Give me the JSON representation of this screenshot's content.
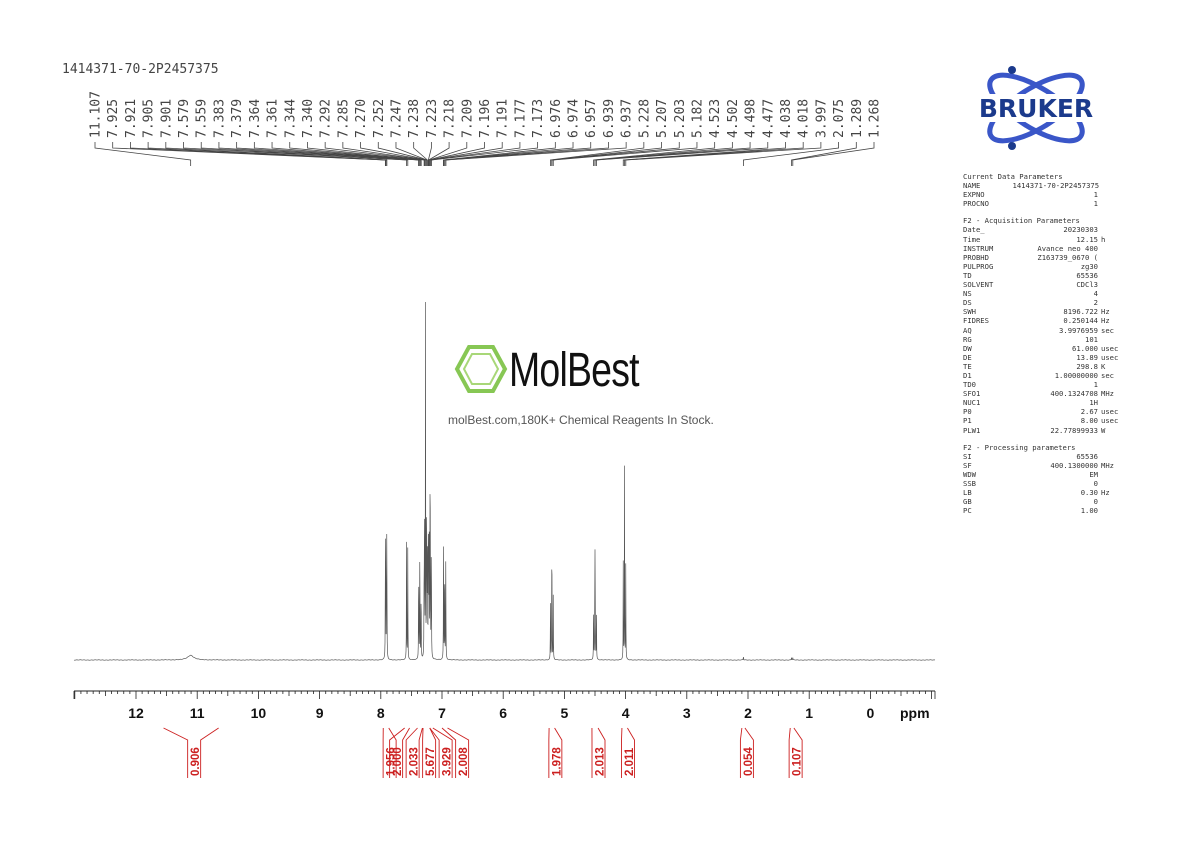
{
  "sample_name": "1414371-70-2P2457375",
  "brand": {
    "name": "BRUKER",
    "color": "#1b3a8c",
    "accent": "#3a56c8"
  },
  "watermark": {
    "name": "MolBest",
    "tagline": "molBest.com,180K+ Chemical Reagents In Stock.",
    "logo_icon": "benzene-ring-icon",
    "color": "#7bc142"
  },
  "parameters": {
    "current": {
      "heading": "Current Data Parameters",
      "rows": [
        {
          "key": "NAME",
          "value": "1414371-70-2P2457375",
          "unit": ""
        },
        {
          "key": "EXPNO",
          "value": "1",
          "unit": ""
        },
        {
          "key": "PROCNO",
          "value": "1",
          "unit": ""
        }
      ]
    },
    "acquisition": {
      "heading": "F2 - Acquisition Parameters",
      "rows": [
        {
          "key": "Date_",
          "value": "20230303",
          "unit": ""
        },
        {
          "key": "Time",
          "value": "12.15",
          "unit": "h"
        },
        {
          "key": "INSTRUM",
          "value": "Avance neo 400",
          "unit": ""
        },
        {
          "key": "PROBHD",
          "value": "Z163739_0670 (",
          "unit": ""
        },
        {
          "key": "PULPROG",
          "value": "zg30",
          "unit": ""
        },
        {
          "key": "TD",
          "value": "65536",
          "unit": ""
        },
        {
          "key": "SOLVENT",
          "value": "CDCl3",
          "unit": ""
        },
        {
          "key": "NS",
          "value": "4",
          "unit": ""
        },
        {
          "key": "DS",
          "value": "2",
          "unit": ""
        },
        {
          "key": "SWH",
          "value": "8196.722",
          "unit": "Hz"
        },
        {
          "key": "FIDRES",
          "value": "0.250144",
          "unit": "Hz"
        },
        {
          "key": "AQ",
          "value": "3.9976959",
          "unit": "sec"
        },
        {
          "key": "RG",
          "value": "101",
          "unit": ""
        },
        {
          "key": "DW",
          "value": "61.000",
          "unit": "usec"
        },
        {
          "key": "DE",
          "value": "13.89",
          "unit": "usec"
        },
        {
          "key": "TE",
          "value": "298.8",
          "unit": "K"
        },
        {
          "key": "D1",
          "value": "1.00000000",
          "unit": "sec"
        },
        {
          "key": "TD0",
          "value": "1",
          "unit": ""
        },
        {
          "key": "SFO1",
          "value": "400.1324708",
          "unit": "MHz"
        },
        {
          "key": "NUC1",
          "value": "1H",
          "unit": ""
        },
        {
          "key": "P0",
          "value": "2.67",
          "unit": "usec"
        },
        {
          "key": "P1",
          "value": "8.00",
          "unit": "usec"
        },
        {
          "key": "PLW1",
          "value": "22.77899933",
          "unit": "W"
        }
      ]
    },
    "processing": {
      "heading": "F2 - Processing parameters",
      "rows": [
        {
          "key": "SI",
          "value": "65536",
          "unit": ""
        },
        {
          "key": "SF",
          "value": "400.1300000",
          "unit": "MHz"
        },
        {
          "key": "WDW",
          "value": "EM",
          "unit": ""
        },
        {
          "key": "SSB",
          "value": "0",
          "unit": ""
        },
        {
          "key": "LB",
          "value": "0.30",
          "unit": "Hz"
        },
        {
          "key": "GB",
          "value": "0",
          "unit": ""
        },
        {
          "key": "PC",
          "value": "1.00",
          "unit": ""
        }
      ]
    }
  },
  "chart_data": {
    "type": "line",
    "xlabel": "ppm",
    "xlim": [
      13.0,
      -1.0
    ],
    "x_reversed": true,
    "x_ticks": [
      12,
      11,
      10,
      9,
      8,
      7,
      6,
      5,
      4,
      3,
      2,
      1,
      0
    ],
    "minor_tick_step": 0.1,
    "peak_labels": [
      "11.107",
      "7.925",
      "7.921",
      "7.905",
      "7.901",
      "7.579",
      "7.559",
      "7.383",
      "7.379",
      "7.364",
      "7.361",
      "7.344",
      "7.340",
      "7.292",
      "7.285",
      "7.270",
      "7.252",
      "7.247",
      "7.238",
      "7.223",
      "7.218",
      "7.209",
      "7.196",
      "7.191",
      "7.177",
      "7.173",
      "6.976",
      "6.974",
      "6.957",
      "6.939",
      "6.937",
      "5.228",
      "5.207",
      "5.203",
      "5.182",
      "4.523",
      "4.502",
      "4.498",
      "4.477",
      "4.038",
      "4.018",
      "3.997",
      "2.075",
      "1.289",
      "1.268"
    ],
    "peaks": [
      {
        "ppm": 11.107,
        "height": 0.012,
        "width": 0.06
      },
      {
        "ppm": 7.925,
        "height": 0.27,
        "width": 0.0022
      },
      {
        "ppm": 7.921,
        "height": 0.27,
        "width": 0.0022
      },
      {
        "ppm": 7.905,
        "height": 0.28,
        "width": 0.0022
      },
      {
        "ppm": 7.901,
        "height": 0.28,
        "width": 0.0022
      },
      {
        "ppm": 7.579,
        "height": 0.36,
        "width": 0.0022
      },
      {
        "ppm": 7.559,
        "height": 0.3,
        "width": 0.0022
      },
      {
        "ppm": 7.383,
        "height": 0.14,
        "width": 0.0022
      },
      {
        "ppm": 7.379,
        "height": 0.15,
        "width": 0.0022
      },
      {
        "ppm": 7.364,
        "height": 0.17,
        "width": 0.0022
      },
      {
        "ppm": 7.361,
        "height": 0.17,
        "width": 0.0022
      },
      {
        "ppm": 7.344,
        "height": 0.11,
        "width": 0.0022
      },
      {
        "ppm": 7.34,
        "height": 0.11,
        "width": 0.0022
      },
      {
        "ppm": 7.292,
        "height": 0.3,
        "width": 0.0022
      },
      {
        "ppm": 7.285,
        "height": 0.35,
        "width": 0.0022
      },
      {
        "ppm": 7.27,
        "height": 0.9,
        "width": 0.0022
      },
      {
        "ppm": 7.252,
        "height": 0.4,
        "width": 0.0022
      },
      {
        "ppm": 7.247,
        "height": 0.25,
        "width": 0.0022
      },
      {
        "ppm": 7.238,
        "height": 0.3,
        "width": 0.0022
      },
      {
        "ppm": 7.223,
        "height": 0.33,
        "width": 0.0022
      },
      {
        "ppm": 7.218,
        "height": 0.33,
        "width": 0.0022
      },
      {
        "ppm": 7.209,
        "height": 0.3,
        "width": 0.0022
      },
      {
        "ppm": 7.196,
        "height": 0.34,
        "width": 0.0022
      },
      {
        "ppm": 7.191,
        "height": 0.34,
        "width": 0.0022
      },
      {
        "ppm": 7.177,
        "height": 0.22,
        "width": 0.0022
      },
      {
        "ppm": 7.173,
        "height": 0.2,
        "width": 0.0022
      },
      {
        "ppm": 6.976,
        "height": 0.17,
        "width": 0.0022
      },
      {
        "ppm": 6.974,
        "height": 0.17,
        "width": 0.0022
      },
      {
        "ppm": 6.957,
        "height": 0.32,
        "width": 0.0022
      },
      {
        "ppm": 6.939,
        "height": 0.15,
        "width": 0.0022
      },
      {
        "ppm": 6.937,
        "height": 0.15,
        "width": 0.0022
      },
      {
        "ppm": 5.228,
        "height": 0.16,
        "width": 0.0022
      },
      {
        "ppm": 5.207,
        "height": 0.18,
        "width": 0.0022
      },
      {
        "ppm": 5.203,
        "height": 0.18,
        "width": 0.0022
      },
      {
        "ppm": 5.182,
        "height": 0.16,
        "width": 0.0022
      },
      {
        "ppm": 4.523,
        "height": 0.16,
        "width": 0.0022
      },
      {
        "ppm": 4.502,
        "height": 0.25,
        "width": 0.0022
      },
      {
        "ppm": 4.498,
        "height": 0.25,
        "width": 0.0022
      },
      {
        "ppm": 4.477,
        "height": 0.16,
        "width": 0.0022
      },
      {
        "ppm": 4.038,
        "height": 0.25,
        "width": 0.0022
      },
      {
        "ppm": 4.018,
        "height": 0.48,
        "width": 0.0022
      },
      {
        "ppm": 3.997,
        "height": 0.25,
        "width": 0.0022
      },
      {
        "ppm": 2.075,
        "height": 0.01,
        "width": 0.0025
      },
      {
        "ppm": 1.289,
        "height": 0.006,
        "width": 0.003
      },
      {
        "ppm": 1.268,
        "height": 0.006,
        "width": 0.003
      }
    ],
    "integrals": [
      {
        "value": "0.906",
        "from": 11.55,
        "to": 10.65,
        "center": 11.107
      },
      {
        "value": "1.956",
        "from": 7.96,
        "to": 7.87,
        "center": 7.913
      },
      {
        "value": "2.000",
        "from": 7.61,
        "to": 7.53,
        "center": 7.569
      },
      {
        "value": "2.033",
        "from": 7.4,
        "to": 7.32,
        "center": 7.362
      },
      {
        "value": "5.677",
        "from": 7.31,
        "to": 7.2,
        "center": 7.26
      },
      {
        "value": "3.929",
        "from": 7.2,
        "to": 7.15,
        "center": 7.19
      },
      {
        "value": "2.008",
        "from": 7.0,
        "to": 6.91,
        "center": 6.957
      },
      {
        "value": "1.978",
        "from": 5.25,
        "to": 5.16,
        "center": 5.205
      },
      {
        "value": "2.013",
        "from": 4.55,
        "to": 4.45,
        "center": 4.5
      },
      {
        "value": "2.011",
        "from": 4.06,
        "to": 3.97,
        "center": 4.018
      },
      {
        "value": "0.054",
        "from": 2.1,
        "to": 2.05,
        "center": 2.075
      },
      {
        "value": "0.107",
        "from": 1.31,
        "to": 1.25,
        "center": 1.279
      }
    ]
  }
}
